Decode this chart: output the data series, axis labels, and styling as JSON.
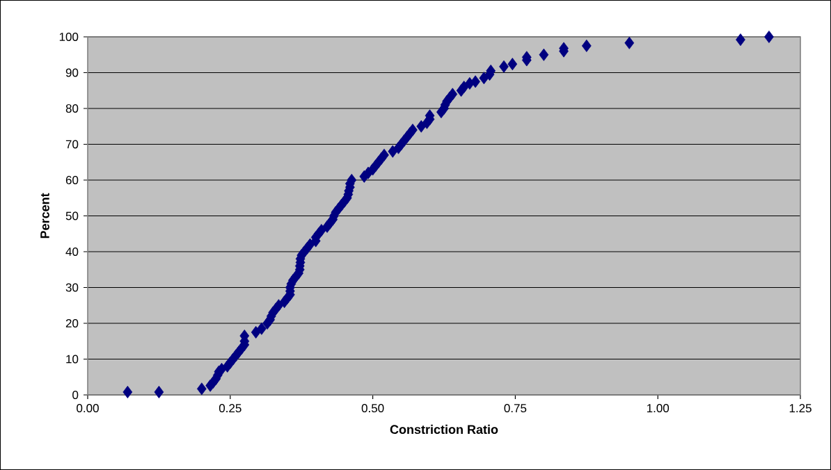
{
  "chart_data": {
    "type": "scatter",
    "xlabel": "Constriction Ratio",
    "ylabel": "Percent",
    "color": "#000080",
    "marker": "diamond",
    "grid": "y",
    "xlim": [
      0,
      1.25
    ],
    "ylim": [
      0,
      100
    ],
    "xticks": [
      {
        "value": 0,
        "label": "0.00"
      },
      {
        "value": 0.25,
        "label": "0.25"
      },
      {
        "value": 0.5,
        "label": "0.50"
      },
      {
        "value": 0.75,
        "label": "0.75"
      },
      {
        "value": 1,
        "label": "1.00"
      },
      {
        "value": 1.25,
        "label": "1.25"
      }
    ],
    "yticks": [
      0,
      10,
      20,
      30,
      40,
      50,
      60,
      70,
      80,
      90,
      100
    ],
    "x": [
      0.07,
      0.125,
      0.2,
      0.215,
      0.22,
      0.225,
      0.228,
      0.23,
      0.235,
      0.245,
      0.25,
      0.255,
      0.26,
      0.265,
      0.27,
      0.275,
      0.275,
      0.275,
      0.295,
      0.305,
      0.315,
      0.32,
      0.322,
      0.325,
      0.33,
      0.335,
      0.345,
      0.35,
      0.355,
      0.355,
      0.355,
      0.357,
      0.36,
      0.365,
      0.37,
      0.372,
      0.372,
      0.373,
      0.373,
      0.375,
      0.38,
      0.385,
      0.39,
      0.4,
      0.4,
      0.405,
      0.41,
      0.42,
      0.425,
      0.43,
      0.432,
      0.435,
      0.44,
      0.445,
      0.45,
      0.455,
      0.457,
      0.458,
      0.46,
      0.46,
      0.463,
      0.485,
      0.492,
      0.5,
      0.505,
      0.51,
      0.515,
      0.52,
      0.535,
      0.545,
      0.55,
      0.555,
      0.56,
      0.565,
      0.57,
      0.585,
      0.595,
      0.6,
      0.6,
      0.62,
      0.625,
      0.627,
      0.63,
      0.635,
      0.64,
      0.655,
      0.66,
      0.67,
      0.68,
      0.695,
      0.705,
      0.707,
      0.73,
      0.745,
      0.77,
      0.77,
      0.8,
      0.835,
      0.835,
      0.875,
      0.95,
      1.145,
      1.195
    ],
    "values": [
      0.8,
      0.8,
      1.7,
      2.6,
      3.5,
      4.5,
      5.5,
      6.5,
      7.2,
      8,
      9,
      10,
      11,
      12,
      13,
      14,
      15,
      16.5,
      17.5,
      18.5,
      20,
      21,
      22,
      23,
      24,
      25,
      26,
      27,
      28,
      29,
      30,
      31,
      32,
      33,
      34,
      35,
      36,
      37,
      38,
      39,
      40,
      41,
      42,
      43,
      44,
      45,
      46,
      47,
      48,
      49,
      50,
      51,
      52,
      53,
      54,
      55,
      56,
      57,
      58,
      59,
      60,
      61,
      62,
      63,
      64,
      65,
      66,
      67,
      68,
      69,
      70,
      71,
      72,
      73,
      74,
      75,
      76,
      77,
      78,
      79,
      80,
      81,
      82,
      83,
      84,
      85,
      86,
      87,
      87.5,
      88.5,
      89.5,
      90.5,
      91.7,
      92.4,
      93.5,
      94.3,
      95,
      96,
      96.8,
      97.5,
      98.3,
      99.2,
      100
    ]
  }
}
